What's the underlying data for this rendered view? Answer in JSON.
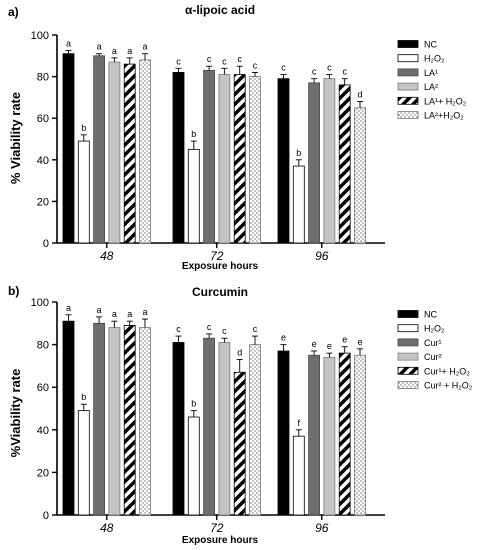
{
  "chart_data": [
    {
      "type": "bar",
      "panel_label": "a)",
      "title": "α-lipoic acid",
      "xlabel": "Exposure hours",
      "ylabel": "% Viability rate",
      "ylim": [
        0,
        100
      ],
      "yticks": [
        0,
        20,
        40,
        60,
        80,
        100
      ],
      "categories": [
        "48",
        "72",
        "96"
      ],
      "legend_position": "right",
      "series": [
        {
          "name": "NC",
          "pattern": "black",
          "values": [
            91,
            82,
            79
          ],
          "errors": [
            1.5,
            2,
            2
          ],
          "labels": [
            "a",
            "c",
            "c"
          ]
        },
        {
          "name": "H₂O₂",
          "pattern": "white",
          "values": [
            49,
            45,
            37
          ],
          "errors": [
            3,
            4,
            3
          ],
          "labels": [
            "b",
            "b",
            "b"
          ]
        },
        {
          "name": "LA¹",
          "pattern": "darkgray",
          "values": [
            90,
            83,
            77
          ],
          "errors": [
            1,
            2,
            2
          ],
          "labels": [
            "a",
            "c",
            "c"
          ]
        },
        {
          "name": "LA²",
          "pattern": "lightgray",
          "values": [
            87,
            81,
            79
          ],
          "errors": [
            2,
            3,
            2
          ],
          "labels": [
            "a",
            "c",
            "c"
          ]
        },
        {
          "name": "LA¹+ H₂O₂",
          "pattern": "diagonal",
          "values": [
            86,
            81,
            76
          ],
          "errors": [
            3,
            4,
            3
          ],
          "labels": [
            "a",
            "c",
            "c"
          ]
        },
        {
          "name": "LA²+H₂O₂",
          "pattern": "dots",
          "values": [
            88,
            80,
            65
          ],
          "errors": [
            3,
            2,
            3
          ],
          "labels": [
            "a",
            "c",
            "d"
          ]
        }
      ]
    },
    {
      "type": "bar",
      "panel_label": "b)",
      "title": "Curcumin",
      "xlabel": "Exposure hours",
      "ylabel": "%Viability rate",
      "ylim": [
        0,
        100
      ],
      "yticks": [
        0,
        20,
        40,
        60,
        80,
        100
      ],
      "categories": [
        "48",
        "72",
        "96"
      ],
      "legend_position": "right",
      "series": [
        {
          "name": "NC",
          "pattern": "black",
          "values": [
            91,
            81,
            77
          ],
          "errors": [
            3,
            3,
            3
          ],
          "labels": [
            "a",
            "c",
            "e"
          ]
        },
        {
          "name": "H₂O₂",
          "pattern": "white",
          "values": [
            49,
            46,
            37
          ],
          "errors": [
            3,
            3,
            3
          ],
          "labels": [
            "b",
            "b",
            "f"
          ]
        },
        {
          "name": "Cur¹",
          "pattern": "darkgray",
          "values": [
            90,
            83,
            75
          ],
          "errors": [
            3,
            2,
            2
          ],
          "labels": [
            "a",
            "c",
            "e"
          ]
        },
        {
          "name": "Cur²",
          "pattern": "lightgray",
          "values": [
            88,
            81,
            74
          ],
          "errors": [
            3,
            2,
            2
          ],
          "labels": [
            "a",
            "c",
            "e"
          ]
        },
        {
          "name": "Cur¹+ H₂O₂",
          "pattern": "diagonal",
          "values": [
            89,
            67,
            76
          ],
          "errors": [
            2,
            6,
            3
          ],
          "labels": [
            "a",
            "d",
            "e"
          ]
        },
        {
          "name": "Cur² + H₂O₂",
          "pattern": "dots",
          "values": [
            88,
            80,
            75
          ],
          "errors": [
            4,
            4,
            3
          ],
          "labels": [
            "a",
            "c",
            "e"
          ]
        }
      ]
    }
  ]
}
